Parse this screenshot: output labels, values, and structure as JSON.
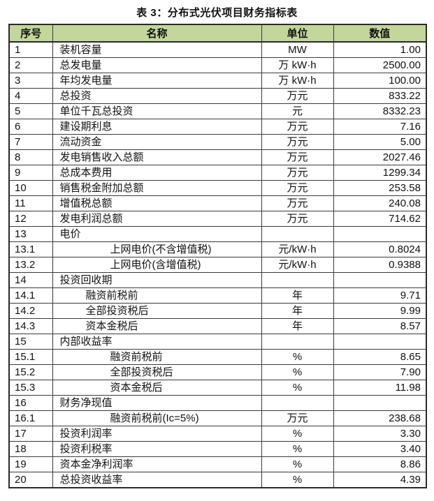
{
  "title": "表 3：分布式光伏项目财务指标表",
  "table": {
    "headers": {
      "no": "序号",
      "name": "名称",
      "unit": "单位",
      "value": "数值"
    },
    "header_bg": "#c3d69b",
    "border_color": "#2a2a2a",
    "rows": [
      {
        "no": "1",
        "name": "装机容量",
        "unit": "MW",
        "value": "1.00",
        "indent": 0
      },
      {
        "no": "2",
        "name": "总发电量",
        "unit": "万 kW·h",
        "value": "2500.00",
        "indent": 0
      },
      {
        "no": "3",
        "name": "年均发电量",
        "unit": "万 kW·h",
        "value": "100.00",
        "indent": 0
      },
      {
        "no": "4",
        "name": "总投资",
        "unit": "万元",
        "value": "833.22",
        "indent": 0
      },
      {
        "no": "5",
        "name": "单位千瓦总投资",
        "unit": "元",
        "value": "8332.23",
        "indent": 0
      },
      {
        "no": "6",
        "name": "建设期利息",
        "unit": "万元",
        "value": "7.16",
        "indent": 0
      },
      {
        "no": "7",
        "name": "流动资金",
        "unit": "万元",
        "value": "5.00",
        "indent": 0
      },
      {
        "no": "8",
        "name": "发电销售收入总额",
        "unit": "万元",
        "value": "2027.46",
        "indent": 0
      },
      {
        "no": "9",
        "name": "总成本费用",
        "unit": "万元",
        "value": "1299.34",
        "indent": 0
      },
      {
        "no": "10",
        "name": "销售税金附加总额",
        "unit": "万元",
        "value": "253.58",
        "indent": 0
      },
      {
        "no": "11",
        "name": "增值税总额",
        "unit": "万元",
        "value": "240.08",
        "indent": 0
      },
      {
        "no": "12",
        "name": "发电利润总额",
        "unit": "万元",
        "value": "714.62",
        "indent": 0
      },
      {
        "no": "13",
        "name": "电价",
        "unit": "",
        "value": "",
        "indent": 0
      },
      {
        "no": "13.1",
        "name": "上网电价(不含增值税)",
        "unit": "元/kW·h",
        "value": "0.8024",
        "indent": 2
      },
      {
        "no": "13.2",
        "name": "上网电价(含增值税)",
        "unit": "元/kW·h",
        "value": "0.9388",
        "indent": 2
      },
      {
        "no": "14",
        "name": "投资回收期",
        "unit": "",
        "value": "",
        "indent": 0
      },
      {
        "no": "14.1",
        "name": "融资前税前",
        "unit": "年",
        "value": "9.71",
        "indent": 1
      },
      {
        "no": "14.2",
        "name": "全部投资税后",
        "unit": "年",
        "value": "9.99",
        "indent": 1
      },
      {
        "no": "14.3",
        "name": "资本金税后",
        "unit": "年",
        "value": "8.57",
        "indent": 1
      },
      {
        "no": "15",
        "name": "内部收益率",
        "unit": "",
        "value": "",
        "indent": 0
      },
      {
        "no": "15.1",
        "name": "融资前税前",
        "unit": "%",
        "value": "8.65",
        "indent": 2
      },
      {
        "no": "15.2",
        "name": "全部投资税后",
        "unit": "%",
        "value": "7.90",
        "indent": 2
      },
      {
        "no": "15.3",
        "name": "资本金税后",
        "unit": "%",
        "value": "11.98",
        "indent": 2
      },
      {
        "no": "16",
        "name": "财务净现值",
        "unit": "",
        "value": "",
        "indent": 0
      },
      {
        "no": "16.1",
        "name": "融资前税前(Ic=5%)",
        "unit": "万元",
        "value": "238.68",
        "indent": 2
      },
      {
        "no": "17",
        "name": "投资利润率",
        "unit": "%",
        "value": "3.30",
        "indent": 0
      },
      {
        "no": "18",
        "name": "投资利税率",
        "unit": "%",
        "value": "3.40",
        "indent": 0
      },
      {
        "no": "19",
        "name": "资本金净利润率",
        "unit": "%",
        "value": "8.86",
        "indent": 0
      },
      {
        "no": "20",
        "name": "总投资收益率",
        "unit": "%",
        "value": "4.39",
        "indent": 0
      }
    ]
  }
}
